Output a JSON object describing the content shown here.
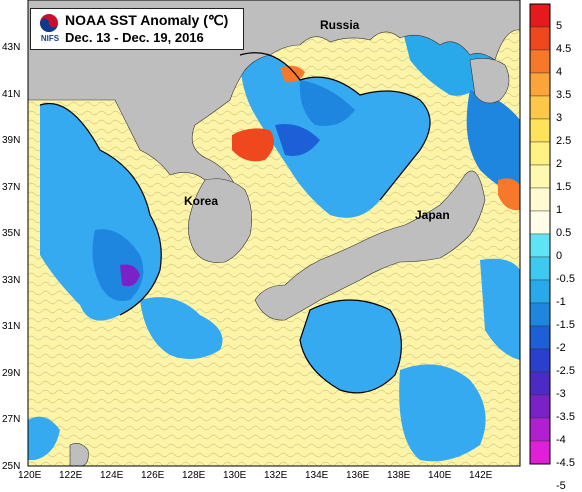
{
  "title": {
    "line1": "NOAA SST Anomaly (℃)",
    "line2": "Dec. 13 - Dec. 19, 2016",
    "org": "NIFS"
  },
  "labels": {
    "russia": "Russia",
    "korea": "Korea",
    "japan": "Japan"
  },
  "lat_ticks": [
    "43N",
    "41N",
    "39N",
    "37N",
    "35N",
    "33N",
    "31N",
    "29N",
    "27N",
    "25N"
  ],
  "lon_ticks": [
    "120E",
    "122E",
    "124E",
    "126E",
    "128E",
    "130E",
    "132E",
    "134E",
    "136E",
    "138E",
    "140E",
    "142E"
  ],
  "colorbar": {
    "labels": [
      "5",
      "4.5",
      "4",
      "3.5",
      "3",
      "2.5",
      "2",
      "1.5",
      "1",
      "0.5",
      "0",
      "-0.5",
      "-1",
      "-1.5",
      "-2",
      "-2.5",
      "-3",
      "-3.5",
      "-4",
      "-4.5",
      "-5"
    ],
    "colors": [
      "#e41a1c",
      "#f0481e",
      "#f6782a",
      "#fba43a",
      "#fdc84a",
      "#fde35c",
      "#fef282",
      "#fff8b0",
      "#fffbd0",
      "#fffde8",
      "#5fe3f5",
      "#3ec9f0",
      "#29a9ea",
      "#1f86e0",
      "#1c5fd6",
      "#2a3fcc",
      "#4b2bc4",
      "#7a22c8",
      "#b020d0",
      "#e020d8"
    ]
  },
  "colors": {
    "land": "#bebebe",
    "sea_warm": "#fdf4a8",
    "sea_cool": "#35aaf0"
  }
}
